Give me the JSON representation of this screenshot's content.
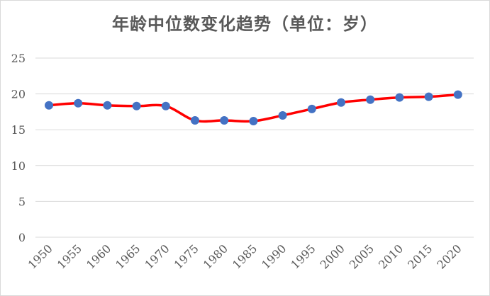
{
  "chart_data": {
    "type": "line",
    "title": "年龄中位数变化趋势（单位：岁）",
    "xlabel": "",
    "ylabel": "",
    "categories": [
      "1950",
      "1955",
      "1960",
      "1965",
      "1970",
      "1975",
      "1980",
      "1985",
      "1990",
      "1995",
      "2000",
      "2005",
      "2010",
      "2015",
      "2020"
    ],
    "series": [
      {
        "values": [
          18.4,
          18.7,
          18.4,
          18.3,
          18.3,
          16.3,
          16.3,
          16.2,
          17.0,
          17.9,
          18.8,
          19.2,
          19.5,
          19.6,
          19.9
        ],
        "line_color": "#ff0000",
        "marker_color": "#4472c4"
      }
    ],
    "ylim": [
      0,
      25
    ],
    "yticks": [
      "0",
      "5",
      "10",
      "15",
      "20",
      "25"
    ],
    "grid": "horizontal",
    "smooth": true,
    "legend": "none"
  }
}
